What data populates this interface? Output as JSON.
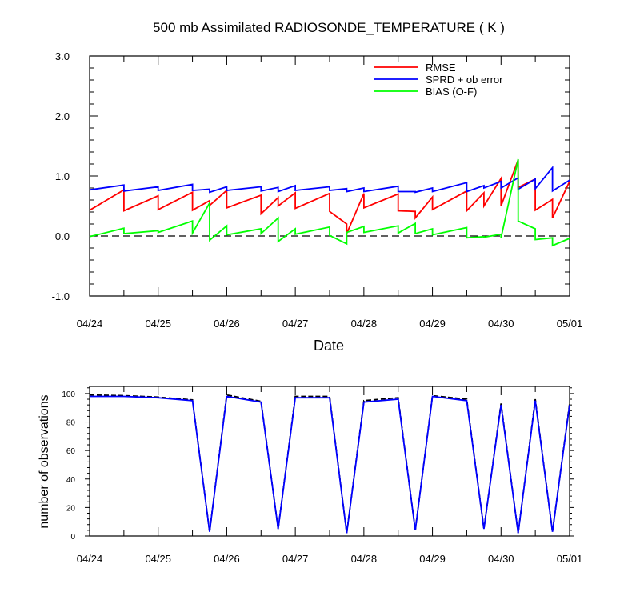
{
  "chart_data": [
    {
      "type": "line",
      "title": "500 mb Assimilated RADIOSONDE_TEMPERATURE ( K )",
      "xlabel": "Date",
      "ylabel": "",
      "xlim": [
        0,
        7
      ],
      "ylim": [
        -1.0,
        3.0
      ],
      "x_tick_values": [
        0,
        1,
        2,
        3,
        4,
        5,
        6,
        7
      ],
      "x_tick_labels": [
        "04/24",
        "04/25",
        "04/26",
        "04/27",
        "04/28",
        "04/29",
        "04/30",
        "05/01"
      ],
      "y_tick_values": [
        -1.0,
        0.0,
        1.0,
        2.0,
        3.0
      ],
      "y_tick_labels": [
        "-1.0",
        "0.0",
        "1.0",
        "2.0",
        "3.0"
      ],
      "legend_position": "top-right",
      "reference_line": {
        "y": 0.0,
        "style": "dashed"
      },
      "series": [
        {
          "name": "RMSE",
          "color": "#ff0000",
          "points": [
            [
              0,
              0.43
            ],
            [
              0.5,
              0.77
            ],
            [
              0.5,
              0.42
            ],
            [
              1,
              0.67
            ],
            [
              1,
              0.44
            ],
            [
              1.5,
              0.73
            ],
            [
              1.5,
              0.43
            ],
            [
              1.75,
              0.59
            ],
            [
              1.75,
              0.51
            ],
            [
              2,
              0.76
            ],
            [
              2,
              0.47
            ],
            [
              2.5,
              0.68
            ],
            [
              2.5,
              0.37
            ],
            [
              2.75,
              0.64
            ],
            [
              2.75,
              0.5
            ],
            [
              3,
              0.72
            ],
            [
              3,
              0.46
            ],
            [
              3.5,
              0.71
            ],
            [
              3.5,
              0.41
            ],
            [
              3.75,
              0.2
            ],
            [
              3.75,
              0.04
            ],
            [
              4,
              0.71
            ],
            [
              4,
              0.47
            ],
            [
              4.5,
              0.7
            ],
            [
              4.5,
              0.42
            ],
            [
              4.75,
              0.41
            ],
            [
              4.75,
              0.3
            ],
            [
              5,
              0.65
            ],
            [
              5,
              0.44
            ],
            [
              5.5,
              0.75
            ],
            [
              5.5,
              0.42
            ],
            [
              5.75,
              0.72
            ],
            [
              5.75,
              0.5
            ],
            [
              6,
              0.96
            ],
            [
              6,
              0.5
            ],
            [
              6.25,
              1.27
            ],
            [
              6.25,
              0.81
            ],
            [
              6.5,
              0.95
            ],
            [
              6.5,
              0.43
            ],
            [
              6.75,
              0.61
            ],
            [
              6.75,
              0.3
            ],
            [
              7,
              0.91
            ]
          ]
        },
        {
          "name": "SPRD + ob error",
          "color": "#0000ff",
          "points": [
            [
              0,
              0.77
            ],
            [
              0.5,
              0.85
            ],
            [
              0.5,
              0.75
            ],
            [
              1,
              0.82
            ],
            [
              1,
              0.76
            ],
            [
              1.5,
              0.86
            ],
            [
              1.5,
              0.76
            ],
            [
              1.75,
              0.78
            ],
            [
              1.75,
              0.73
            ],
            [
              2,
              0.82
            ],
            [
              2,
              0.76
            ],
            [
              2.5,
              0.82
            ],
            [
              2.5,
              0.75
            ],
            [
              2.75,
              0.81
            ],
            [
              2.75,
              0.74
            ],
            [
              3,
              0.84
            ],
            [
              3,
              0.76
            ],
            [
              3.5,
              0.82
            ],
            [
              3.5,
              0.76
            ],
            [
              3.75,
              0.79
            ],
            [
              3.75,
              0.74
            ],
            [
              4,
              0.8
            ],
            [
              4,
              0.74
            ],
            [
              4.5,
              0.83
            ],
            [
              4.5,
              0.74
            ],
            [
              4.75,
              0.74
            ],
            [
              4.75,
              0.73
            ],
            [
              5,
              0.8
            ],
            [
              5,
              0.74
            ],
            [
              5.5,
              0.89
            ],
            [
              5.5,
              0.74
            ],
            [
              5.75,
              0.84
            ],
            [
              5.75,
              0.8
            ],
            [
              6,
              0.91
            ],
            [
              6,
              0.8
            ],
            [
              6.25,
              0.97
            ],
            [
              6.25,
              0.78
            ],
            [
              6.5,
              0.95
            ],
            [
              6.5,
              0.79
            ],
            [
              6.75,
              1.14
            ],
            [
              6.75,
              0.75
            ],
            [
              7,
              0.93
            ]
          ]
        },
        {
          "name": "BIAS (O-F)",
          "color": "#00ff00",
          "points": [
            [
              0,
              -0.01
            ],
            [
              0.5,
              0.13
            ],
            [
              0.5,
              0.04
            ],
            [
              1,
              0.09
            ],
            [
              1,
              0.06
            ],
            [
              1.5,
              0.25
            ],
            [
              1.5,
              0.05
            ],
            [
              1.75,
              0.55
            ],
            [
              1.75,
              -0.07
            ],
            [
              2,
              0.17
            ],
            [
              2,
              0.02
            ],
            [
              2.5,
              0.12
            ],
            [
              2.5,
              0.04
            ],
            [
              2.75,
              0.3
            ],
            [
              2.75,
              -0.09
            ],
            [
              3,
              0.12
            ],
            [
              3,
              0.03
            ],
            [
              3.5,
              0.15
            ],
            [
              3.5,
              0.01
            ],
            [
              3.75,
              -0.13
            ],
            [
              3.75,
              0.06
            ],
            [
              4,
              0.16
            ],
            [
              4,
              0.06
            ],
            [
              4.5,
              0.17
            ],
            [
              4.5,
              0.05
            ],
            [
              4.75,
              0.21
            ],
            [
              4.75,
              0.04
            ],
            [
              5,
              0.12
            ],
            [
              5,
              0.02
            ],
            [
              5.5,
              0.14
            ],
            [
              5.5,
              -0.03
            ],
            [
              5.75,
              -0.01
            ],
            [
              5.75,
              -0.02
            ],
            [
              6,
              0.03
            ],
            [
              6,
              -0.03
            ],
            [
              6.25,
              1.28
            ],
            [
              6.25,
              0.25
            ],
            [
              6.5,
              0.12
            ],
            [
              6.5,
              -0.06
            ],
            [
              6.75,
              -0.03
            ],
            [
              6.75,
              -0.16
            ],
            [
              7,
              -0.04
            ]
          ]
        }
      ]
    },
    {
      "type": "line",
      "title": "",
      "xlabel": "",
      "ylabel": "number of observations",
      "xlim": [
        0,
        7
      ],
      "ylim": [
        0,
        105
      ],
      "x_tick_values": [
        0,
        1,
        2,
        3,
        4,
        5,
        6,
        7
      ],
      "x_tick_labels": [
        "04/24",
        "04/25",
        "04/26",
        "04/27",
        "04/28",
        "04/29",
        "04/30",
        "05/01"
      ],
      "y_tick_values": [
        0,
        20,
        40,
        60,
        80,
        100
      ],
      "y_tick_labels": [
        "0",
        "20",
        "40",
        "60",
        "80",
        "100"
      ],
      "series": [
        {
          "color": "#000000",
          "style": "dashed",
          "points": [
            [
              0,
              99
            ],
            [
              0.5,
              98.5
            ],
            [
              1,
              97.5
            ],
            [
              1.5,
              95.5
            ],
            [
              1.75,
              3
            ],
            [
              2,
              99
            ],
            [
              2.5,
              94.5
            ],
            [
              2.75,
              5
            ],
            [
              3,
              98
            ],
            [
              3.5,
              98
            ],
            [
              3.75,
              2
            ],
            [
              4,
              95
            ],
            [
              4.5,
              97
            ],
            [
              4.75,
              4
            ],
            [
              5,
              98.5
            ],
            [
              5.5,
              96
            ],
            [
              5.75,
              5
            ],
            [
              6,
              93
            ],
            [
              6.25,
              2
            ],
            [
              6.5,
              96
            ],
            [
              6.75,
              3
            ],
            [
              7,
              93
            ]
          ]
        },
        {
          "color": "#0000ff",
          "style": "solid",
          "points": [
            [
              0,
              98
            ],
            [
              0.5,
              98
            ],
            [
              1,
              97
            ],
            [
              1.5,
              95
            ],
            [
              1.75,
              3
            ],
            [
              2,
              98
            ],
            [
              2.5,
              94
            ],
            [
              2.75,
              5
            ],
            [
              3,
              97
            ],
            [
              3.5,
              97
            ],
            [
              3.75,
              2
            ],
            [
              4,
              94
            ],
            [
              4.5,
              96
            ],
            [
              4.75,
              4
            ],
            [
              5,
              98
            ],
            [
              5.5,
              95
            ],
            [
              5.75,
              5
            ],
            [
              6,
              92
            ],
            [
              6.25,
              2
            ],
            [
              6.5,
              95
            ],
            [
              6.75,
              3
            ],
            [
              7,
              92
            ]
          ]
        }
      ]
    }
  ]
}
